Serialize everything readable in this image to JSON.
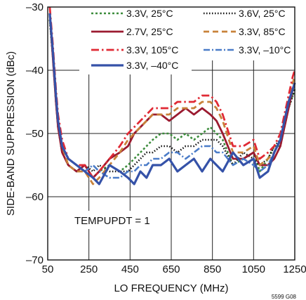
{
  "chart_data": {
    "type": "line",
    "xlabel": "LO FREQUENCY (MHz)",
    "ylabel": "SIDE-BAND SUPPRESSION (dBc)",
    "xlim": [
      50,
      1250
    ],
    "ylim": [
      -70,
      -30
    ],
    "xticks": [
      50,
      250,
      450,
      650,
      850,
      1050,
      1250
    ],
    "yticks": [
      -30,
      -40,
      -50,
      -60,
      -70
    ],
    "ytick_labels": [
      "–30",
      "–40",
      "–50",
      "–60",
      "–70"
    ],
    "grid": true,
    "legend_position": "top",
    "annotation": "TEMPUPDT = 1",
    "figure_id": "5599 G08",
    "series": [
      {
        "name": "3.3V, 25°C",
        "color": "#3c8c3c",
        "dash": "3,3",
        "width": 2.6,
        "x": [
          60,
          75,
          90,
          100,
          120,
          150,
          190,
          230,
          270,
          300,
          350,
          400,
          440,
          470,
          500,
          530,
          560,
          600,
          640,
          680,
          720,
          760,
          800,
          840,
          870,
          900,
          950,
          1000,
          1050,
          1080,
          1120,
          1150,
          1180,
          1200,
          1220,
          1240,
          1250
        ],
        "y": [
          -32,
          -38,
          -45,
          -49,
          -53,
          -55,
          -56,
          -55,
          -57,
          -56,
          -55,
          -56,
          -55,
          -54,
          -53,
          -52,
          -51,
          -50,
          -50,
          -51,
          -50,
          -51,
          -50,
          -49,
          -50,
          -51,
          -55,
          -54,
          -53,
          -56,
          -54,
          -52,
          -52,
          -49,
          -46,
          -44,
          -43
        ]
      },
      {
        "name": "3.6V, 25°C",
        "color": "#111111",
        "dash": "1.5,2.5",
        "width": 2.6,
        "x": [
          60,
          75,
          90,
          100,
          120,
          150,
          190,
          230,
          270,
          300,
          350,
          400,
          440,
          470,
          500,
          530,
          560,
          600,
          640,
          680,
          720,
          760,
          800,
          840,
          870,
          900,
          950,
          1000,
          1050,
          1080,
          1120,
          1150,
          1180,
          1200,
          1220,
          1240,
          1250
        ],
        "y": [
          -32,
          -38,
          -45,
          -49,
          -53,
          -55,
          -56,
          -55,
          -56,
          -55,
          -56,
          -56,
          -56,
          -55,
          -54,
          -53,
          -53,
          -52,
          -52,
          -53,
          -52,
          -52,
          -51,
          -51,
          -51,
          -52,
          -55,
          -53,
          -54,
          -55,
          -54,
          -52,
          -51,
          -49,
          -46,
          -44,
          -43
        ]
      },
      {
        "name": "2.7V, 25°C",
        "color": "#9b1b30",
        "dash": "",
        "width": 2.8,
        "x": [
          60,
          75,
          90,
          100,
          120,
          150,
          190,
          230,
          270,
          300,
          350,
          400,
          440,
          470,
          500,
          530,
          560,
          600,
          640,
          680,
          720,
          760,
          800,
          840,
          870,
          900,
          950,
          1000,
          1050,
          1080,
          1120,
          1150,
          1180,
          1200,
          1220,
          1240,
          1250
        ],
        "y": [
          -31,
          -38,
          -45,
          -49,
          -53,
          -55,
          -56,
          -55,
          -57,
          -56,
          -54,
          -53,
          -52,
          -50,
          -49,
          -48,
          -47,
          -47,
          -48,
          -47,
          -46,
          -47,
          -46,
          -47,
          -48,
          -50,
          -54,
          -54,
          -53,
          -55,
          -55,
          -54,
          -52,
          -49,
          -46,
          -43,
          -42
        ]
      },
      {
        "name": "3.3V, 85°C",
        "color": "#c8823a",
        "dash": "8,5",
        "width": 2.8,
        "x": [
          60,
          75,
          90,
          100,
          120,
          150,
          190,
          230,
          270,
          300,
          350,
          400,
          440,
          470,
          500,
          530,
          560,
          600,
          640,
          680,
          720,
          760,
          800,
          840,
          870,
          900,
          950,
          1000,
          1050,
          1080,
          1120,
          1150,
          1180,
          1200,
          1220,
          1240,
          1250
        ],
        "y": [
          -31,
          -37,
          -44,
          -48,
          -52,
          -55,
          -56,
          -56,
          -58,
          -57,
          -55,
          -53,
          -51,
          -50,
          -49,
          -48,
          -47,
          -47,
          -47,
          -46,
          -46,
          -46,
          -45,
          -45,
          -46,
          -48,
          -53,
          -53,
          -52,
          -55,
          -54,
          -53,
          -51,
          -48,
          -45,
          -42,
          -41
        ]
      },
      {
        "name": "3.3V, 105°C",
        "color": "#e02a35",
        "dash": "11,4,2.5,4",
        "width": 2.8,
        "x": [
          60,
          75,
          90,
          100,
          120,
          150,
          190,
          230,
          270,
          300,
          350,
          400,
          440,
          470,
          500,
          530,
          560,
          600,
          640,
          680,
          720,
          760,
          800,
          840,
          870,
          900,
          950,
          1000,
          1050,
          1080,
          1120,
          1150,
          1180,
          1200,
          1220,
          1240,
          1250
        ],
        "y": [
          -30,
          -36,
          -43,
          -47,
          -51,
          -54,
          -55,
          -55,
          -57,
          -56,
          -54,
          -52,
          -50,
          -49,
          -48,
          -47,
          -46,
          -46,
          -46,
          -45,
          -45,
          -45,
          -44,
          -44,
          -45,
          -47,
          -52,
          -52,
          -51,
          -54,
          -53,
          -52,
          -50,
          -47,
          -44,
          -41,
          -40
        ]
      },
      {
        "name": "3.3V, –10°C",
        "color": "#4b7cc8",
        "dash": "9,3,2,3",
        "width": 2.6,
        "x": [
          60,
          75,
          90,
          100,
          120,
          150,
          190,
          230,
          270,
          300,
          350,
          400,
          440,
          470,
          500,
          530,
          560,
          600,
          640,
          680,
          720,
          760,
          800,
          840,
          870,
          900,
          950,
          1000,
          1050,
          1080,
          1120,
          1150,
          1180,
          1200,
          1220,
          1240,
          1250
        ],
        "y": [
          -31,
          -37,
          -44,
          -48,
          -52,
          -54,
          -55,
          -56,
          -55,
          -56,
          -57,
          -57,
          -56,
          -56,
          -55,
          -55,
          -54,
          -54,
          -53,
          -53,
          -54,
          -53,
          -52,
          -52,
          -53,
          -53,
          -55,
          -54,
          -55,
          -56,
          -55,
          -53,
          -51,
          -48,
          -45,
          -43,
          -42
        ]
      },
      {
        "name": "3.3V, –40°C",
        "color": "#3552a8",
        "dash": "",
        "width": 3.2,
        "x": [
          60,
          75,
          90,
          100,
          120,
          150,
          190,
          230,
          270,
          300,
          350,
          400,
          440,
          470,
          500,
          530,
          560,
          600,
          640,
          680,
          720,
          760,
          800,
          840,
          870,
          900,
          950,
          1000,
          1050,
          1080,
          1120,
          1150,
          1180,
          1200,
          1220,
          1240,
          1250
        ],
        "y": [
          -31,
          -37,
          -44,
          -48,
          -52,
          -54,
          -55,
          -56,
          -57,
          -58,
          -55,
          -56,
          -57,
          -58,
          -56,
          -57,
          -55,
          -55,
          -54,
          -56,
          -55,
          -54,
          -56,
          -54,
          -55,
          -56,
          -53,
          -55,
          -54,
          -57,
          -56,
          -53,
          -51,
          -48,
          -45,
          -43,
          -42
        ]
      }
    ]
  }
}
